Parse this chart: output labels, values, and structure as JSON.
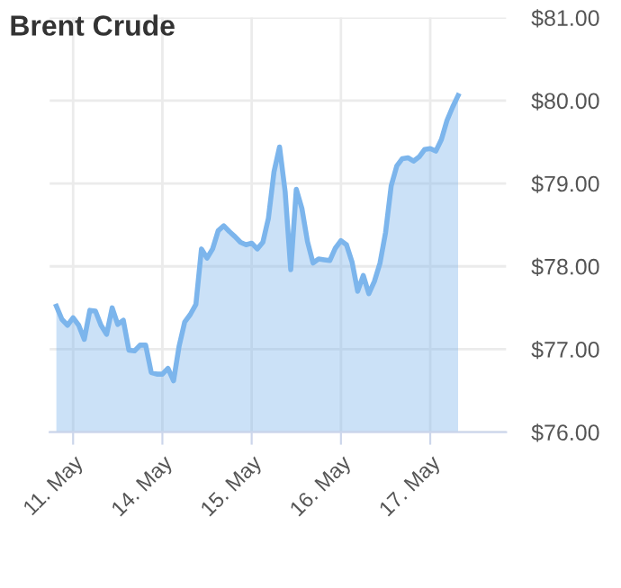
{
  "chart_data": {
    "type": "area",
    "title": "Brent Crude",
    "categories": [
      null,
      null,
      null,
      "11. May",
      null,
      null,
      null,
      null,
      null,
      null,
      null,
      null,
      null,
      null,
      null,
      null,
      null,
      null,
      null,
      "14. May",
      null,
      null,
      null,
      null,
      null,
      null,
      null,
      null,
      null,
      null,
      null,
      null,
      null,
      null,
      null,
      "15. May",
      null,
      null,
      null,
      null,
      null,
      null,
      null,
      null,
      null,
      null,
      null,
      null,
      null,
      null,
      null,
      "16. May",
      null,
      null,
      null,
      null,
      null,
      null,
      null,
      null,
      null,
      null,
      null,
      null,
      null,
      null,
      null,
      "17. May",
      null,
      null,
      null,
      null,
      null
    ],
    "series": [
      {
        "color": "#7cb5ec",
        "values": [
          77.52,
          77.36,
          77.29,
          77.38,
          77.29,
          77.12,
          77.47,
          77.46,
          77.29,
          77.18,
          77.5,
          77.3,
          77.35,
          76.99,
          76.98,
          77.05,
          77.05,
          76.72,
          76.7,
          76.7,
          76.77,
          76.62,
          77.04,
          77.33,
          77.42,
          77.54,
          78.21,
          78.1,
          78.21,
          78.43,
          78.49,
          78.42,
          78.36,
          78.29,
          78.26,
          78.28,
          78.21,
          78.29,
          78.58,
          79.14,
          79.44,
          78.9,
          77.96,
          78.93,
          78.7,
          78.3,
          78.04,
          78.09,
          78.08,
          78.07,
          78.22,
          78.31,
          78.26,
          78.05,
          77.7,
          77.89,
          77.67,
          77.82,
          78.04,
          78.41,
          78.97,
          79.21,
          79.3,
          79.31,
          79.27,
          79.32,
          79.41,
          79.42,
          79.39,
          79.53,
          79.76,
          79.92,
          80.06
        ]
      }
    ],
    "ylim": [
      76,
      81
    ],
    "yticks": [
      {
        "value": 76,
        "label": "$76.00"
      },
      {
        "value": 77,
        "label": "$77.00"
      },
      {
        "value": 78,
        "label": "$78.00"
      },
      {
        "value": 79,
        "label": "$79.00"
      },
      {
        "value": 80,
        "label": "$80.00"
      },
      {
        "value": 81,
        "label": "$81.00"
      }
    ],
    "grid": true
  }
}
